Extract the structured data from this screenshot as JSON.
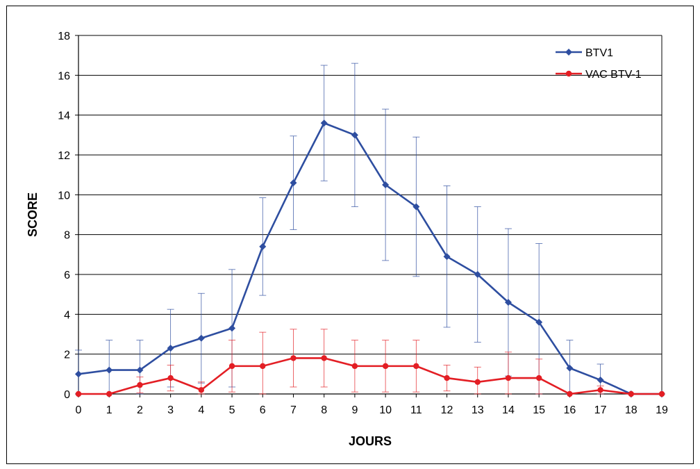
{
  "chart_data": {
    "type": "line",
    "title": "",
    "xlabel": "JOURS",
    "ylabel": "SCORE",
    "xlim": [
      0,
      19
    ],
    "ylim": [
      0,
      18
    ],
    "yticks": [
      0,
      2,
      4,
      6,
      8,
      10,
      12,
      14,
      16,
      18
    ],
    "x": [
      0,
      1,
      2,
      3,
      4,
      5,
      6,
      7,
      8,
      9,
      10,
      11,
      12,
      13,
      14,
      15,
      16,
      17,
      18,
      19
    ],
    "grid": "horizontal",
    "legend_position": "top-right",
    "series": [
      {
        "name": "BTV1",
        "color": "#2e4ea0",
        "marker": "diamond",
        "values": [
          1.0,
          1.2,
          1.2,
          2.3,
          2.8,
          3.3,
          7.4,
          10.6,
          13.6,
          13.0,
          10.5,
          9.4,
          6.9,
          6.0,
          4.6,
          3.6,
          1.3,
          0.7,
          0.0,
          0.0
        ],
        "error": [
          1.2,
          1.5,
          1.5,
          1.95,
          2.25,
          2.95,
          2.45,
          2.35,
          2.9,
          3.6,
          3.8,
          3.5,
          3.55,
          3.4,
          3.7,
          3.95,
          1.4,
          0.8,
          0,
          0
        ]
      },
      {
        "name": "VAC BTV-1",
        "color": "#e31e24",
        "marker": "circle",
        "values": [
          0.0,
          0.0,
          0.45,
          0.8,
          0.2,
          1.4,
          1.4,
          1.8,
          1.8,
          1.4,
          1.4,
          1.4,
          0.8,
          0.6,
          0.8,
          0.8,
          0.0,
          0.2,
          0.0,
          0.0
        ],
        "error": [
          0,
          0,
          0.4,
          0.65,
          0.4,
          1.3,
          1.7,
          1.45,
          1.45,
          1.3,
          1.3,
          1.3,
          0.65,
          0.75,
          1.3,
          0.95,
          0,
          0.2,
          0,
          0
        ]
      }
    ]
  }
}
